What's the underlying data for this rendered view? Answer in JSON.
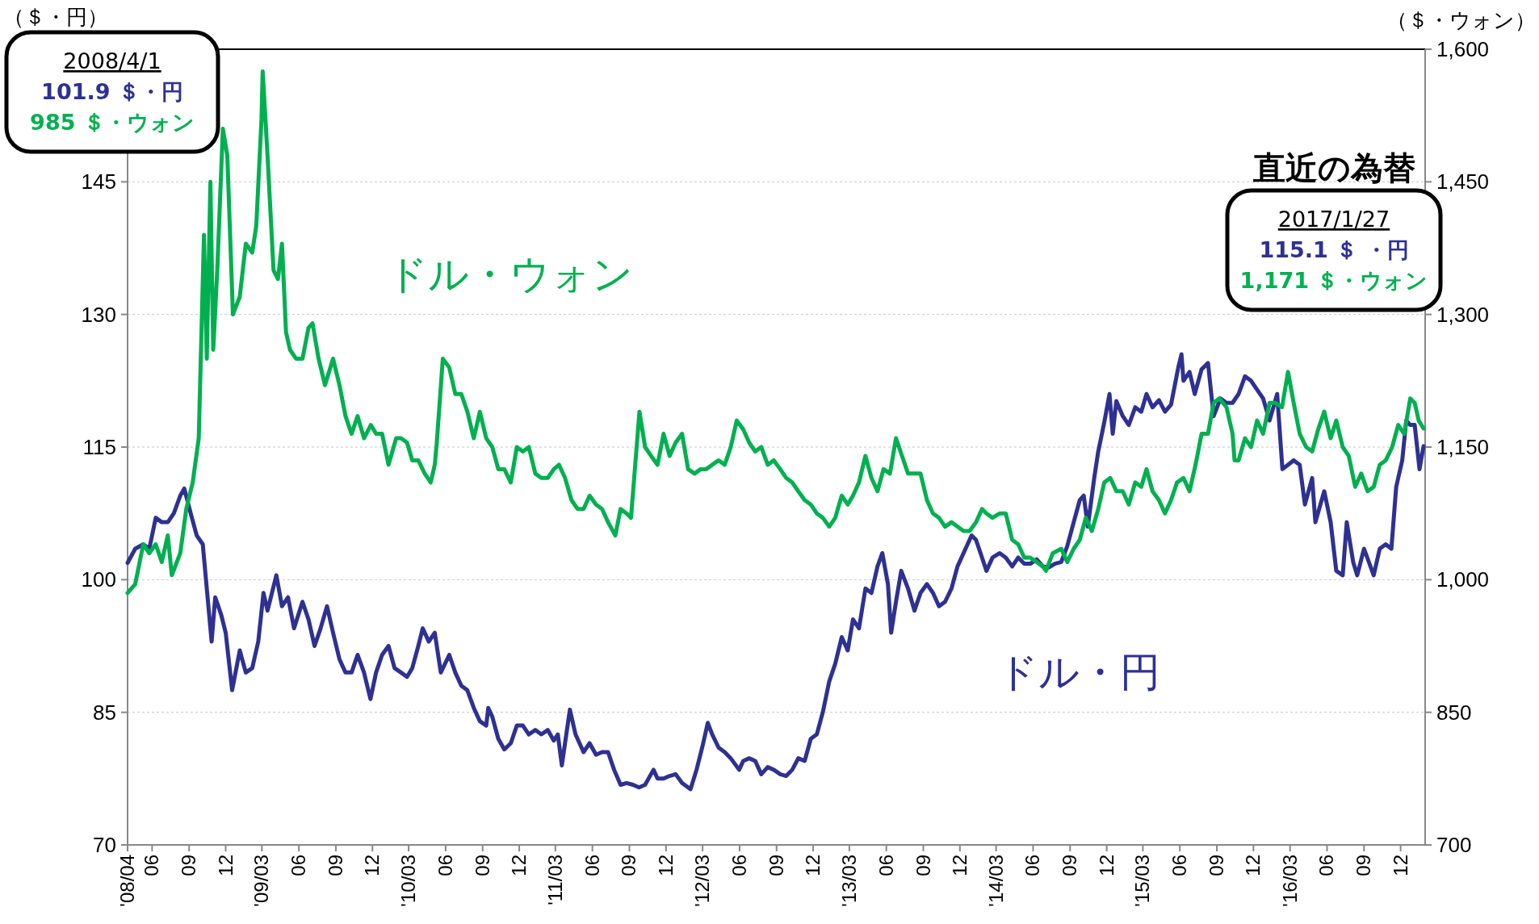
{
  "chart_data": {
    "type": "line",
    "ylabel": "（＄・円）",
    "y2label": "（＄・ウォン）",
    "xlim": [
      "2008-04-01",
      "2017-01-31"
    ],
    "xticks": [
      {
        "value": "2008-04-01",
        "label": "'08/04"
      },
      {
        "value": "2008-06-01",
        "label": "06"
      },
      {
        "value": "2008-09-01",
        "label": "09"
      },
      {
        "value": "2008-12-01",
        "label": "12"
      },
      {
        "value": "2009-03-01",
        "label": "'09/03"
      },
      {
        "value": "2009-06-01",
        "label": "06"
      },
      {
        "value": "2009-09-01",
        "label": "09"
      },
      {
        "value": "2009-12-01",
        "label": "12"
      },
      {
        "value": "2010-03-01",
        "label": "'10/03"
      },
      {
        "value": "2010-06-01",
        "label": "06"
      },
      {
        "value": "2010-09-01",
        "label": "09"
      },
      {
        "value": "2010-12-01",
        "label": "12"
      },
      {
        "value": "2011-03-01",
        "label": "'11/03"
      },
      {
        "value": "2011-06-01",
        "label": "06"
      },
      {
        "value": "2011-09-01",
        "label": "09"
      },
      {
        "value": "2011-12-01",
        "label": "12"
      },
      {
        "value": "2012-03-01",
        "label": "'12/03"
      },
      {
        "value": "2012-06-01",
        "label": "06"
      },
      {
        "value": "2012-09-01",
        "label": "09"
      },
      {
        "value": "2012-12-01",
        "label": "12"
      },
      {
        "value": "2013-03-01",
        "label": "'13/03"
      },
      {
        "value": "2013-06-01",
        "label": "06"
      },
      {
        "value": "2013-09-01",
        "label": "09"
      },
      {
        "value": "2013-12-01",
        "label": "12"
      },
      {
        "value": "2014-03-01",
        "label": "'14/03"
      },
      {
        "value": "2014-06-01",
        "label": "06"
      },
      {
        "value": "2014-09-01",
        "label": "09"
      },
      {
        "value": "2014-12-01",
        "label": "12"
      },
      {
        "value": "2015-03-01",
        "label": "'15/03"
      },
      {
        "value": "2015-06-01",
        "label": "06"
      },
      {
        "value": "2015-09-01",
        "label": "09"
      },
      {
        "value": "2015-12-01",
        "label": "12"
      },
      {
        "value": "2016-03-01",
        "label": "'16/03"
      },
      {
        "value": "2016-06-01",
        "label": "06"
      },
      {
        "value": "2016-09-01",
        "label": "09"
      },
      {
        "value": "2016-12-01",
        "label": "12"
      }
    ],
    "ylim": [
      70,
      160
    ],
    "yticks": [
      70,
      85,
      100,
      115,
      130,
      145
    ],
    "y2lim": [
      700,
      1600
    ],
    "y2ticks": [
      {
        "value": 700,
        "label": "700"
      },
      {
        "value": 850,
        "label": "850"
      },
      {
        "value": 1000,
        "label": "1,000"
      },
      {
        "value": 1150,
        "label": "1,150"
      },
      {
        "value": 1300,
        "label": "1,300"
      },
      {
        "value": 1450,
        "label": "1,450"
      },
      {
        "value": 1600,
        "label": "1,600"
      }
    ],
    "grid": "y",
    "annotations": [
      "直近の為替",
      "2008/4/1",
      "101.9 ＄・円",
      "985 ＄・ウォン",
      "2017/1/27",
      "115.1 ＄ ・円",
      "1,171 ＄・ウォン"
    ],
    "series": [
      {
        "name": "ドル・円",
        "color": "#2e3192",
        "x": [
          "2008-04-01",
          "2008-04-20",
          "2008-05-10",
          "2008-05-25",
          "2008-06-10",
          "2008-06-25",
          "2008-07-10",
          "2008-07-25",
          "2008-08-10",
          "2008-08-20",
          "2008-09-05",
          "2008-09-20",
          "2008-10-05",
          "2008-10-15",
          "2008-10-27",
          "2008-11-05",
          "2008-11-20",
          "2008-12-01",
          "2008-12-17",
          "2009-01-05",
          "2009-01-20",
          "2009-02-05",
          "2009-02-20",
          "2009-03-05",
          "2009-03-15",
          "2009-04-06",
          "2009-04-20",
          "2009-05-05",
          "2009-05-20",
          "2009-06-10",
          "2009-06-25",
          "2009-07-10",
          "2009-07-25",
          "2009-08-10",
          "2009-08-25",
          "2009-09-10",
          "2009-09-25",
          "2009-10-10",
          "2009-10-25",
          "2009-11-10",
          "2009-11-26",
          "2009-12-10",
          "2009-12-25",
          "2010-01-10",
          "2010-01-25",
          "2010-02-10",
          "2010-02-25",
          "2010-03-10",
          "2010-03-25",
          "2010-04-05",
          "2010-04-20",
          "2010-05-05",
          "2010-05-20",
          "2010-06-10",
          "2010-06-25",
          "2010-07-10",
          "2010-07-25",
          "2010-08-10",
          "2010-08-25",
          "2010-09-10",
          "2010-09-15",
          "2010-09-25",
          "2010-10-10",
          "2010-10-25",
          "2010-11-10",
          "2010-11-25",
          "2010-12-10",
          "2010-12-25",
          "2011-01-10",
          "2011-01-25",
          "2011-02-10",
          "2011-02-25",
          "2011-03-07",
          "2011-03-17",
          "2011-04-06",
          "2011-04-20",
          "2011-05-10",
          "2011-05-25",
          "2011-06-10",
          "2011-06-25",
          "2011-07-10",
          "2011-07-25",
          "2011-08-10",
          "2011-08-25",
          "2011-09-10",
          "2011-09-25",
          "2011-10-10",
          "2011-10-31",
          "2011-11-10",
          "2011-11-25",
          "2011-12-10",
          "2011-12-25",
          "2012-01-10",
          "2012-01-31",
          "2012-02-15",
          "2012-02-29",
          "2012-03-14",
          "2012-03-25",
          "2012-04-10",
          "2012-04-25",
          "2012-05-10",
          "2012-05-31",
          "2012-06-10",
          "2012-06-25",
          "2012-07-10",
          "2012-07-25",
          "2012-08-10",
          "2012-08-25",
          "2012-09-10",
          "2012-09-25",
          "2012-10-10",
          "2012-10-25",
          "2012-11-10",
          "2012-11-25",
          "2012-12-10",
          "2012-12-25",
          "2013-01-10",
          "2013-01-25",
          "2013-02-10",
          "2013-02-25",
          "2013-03-10",
          "2013-03-25",
          "2013-04-10",
          "2013-04-25",
          "2013-05-10",
          "2013-05-22",
          "2013-06-05",
          "2013-06-13",
          "2013-06-25",
          "2013-07-08",
          "2013-07-25",
          "2013-08-10",
          "2013-08-25",
          "2013-09-10",
          "2013-09-25",
          "2013-10-10",
          "2013-10-25",
          "2013-11-10",
          "2013-11-25",
          "2013-12-10",
          "2013-12-30",
          "2014-01-10",
          "2014-01-25",
          "2014-02-05",
          "2014-02-20",
          "2014-03-10",
          "2014-03-25",
          "2014-04-10",
          "2014-04-25",
          "2014-05-10",
          "2014-05-25",
          "2014-06-10",
          "2014-06-25",
          "2014-07-10",
          "2014-07-25",
          "2014-08-10",
          "2014-08-25",
          "2014-09-10",
          "2014-09-25",
          "2014-10-05",
          "2014-10-15",
          "2014-10-31",
          "2014-11-10",
          "2014-11-25",
          "2014-12-08",
          "2014-12-16",
          "2014-12-25",
          "2015-01-10",
          "2015-01-25",
          "2015-02-10",
          "2015-02-25",
          "2015-03-10",
          "2015-03-25",
          "2015-04-10",
          "2015-04-25",
          "2015-05-10",
          "2015-05-28",
          "2015-06-05",
          "2015-06-10",
          "2015-06-25",
          "2015-07-08",
          "2015-07-25",
          "2015-08-10",
          "2015-08-24",
          "2015-09-10",
          "2015-09-25",
          "2015-10-10",
          "2015-10-25",
          "2015-11-10",
          "2015-11-25",
          "2015-12-10",
          "2015-12-25",
          "2016-01-10",
          "2016-01-29",
          "2016-02-11",
          "2016-02-25",
          "2016-03-10",
          "2016-03-25",
          "2016-04-07",
          "2016-04-25",
          "2016-05-03",
          "2016-05-25",
          "2016-06-10",
          "2016-06-24",
          "2016-07-10",
          "2016-07-20",
          "2016-08-05",
          "2016-08-15",
          "2016-09-01",
          "2016-09-25",
          "2016-10-10",
          "2016-10-25",
          "2016-11-08",
          "2016-11-20",
          "2016-12-05",
          "2016-12-15",
          "2016-12-25",
          "2017-01-05",
          "2017-01-17",
          "2017-01-27"
        ],
        "values": [
          101.9,
          103.5,
          104,
          103.5,
          107,
          106.5,
          106.5,
          107.5,
          109.5,
          110.3,
          107.5,
          105,
          104,
          99,
          93,
          98,
          96,
          94,
          87.5,
          92,
          89.5,
          90,
          93,
          98.5,
          96.5,
          100.5,
          97,
          98,
          94.5,
          97.5,
          95.5,
          92.5,
          94.5,
          97,
          94,
          91,
          89.5,
          89.5,
          91.5,
          89.5,
          86.5,
          89.5,
          91.5,
          92.5,
          90,
          89.5,
          89,
          90,
          92.5,
          94.5,
          93,
          94,
          89.5,
          91.5,
          89.5,
          88,
          87.5,
          85.5,
          84,
          83.5,
          85.5,
          84.5,
          82,
          80.8,
          81.5,
          83.5,
          83.5,
          82.5,
          83,
          82.5,
          83,
          81.8,
          82.5,
          79,
          85.3,
          82.5,
          80.5,
          81.5,
          80.2,
          80.5,
          80.5,
          78.5,
          76.8,
          77,
          76.8,
          76.5,
          76.8,
          78.5,
          77.5,
          77.5,
          77.8,
          78,
          77,
          76.3,
          78.5,
          81,
          83.8,
          82.5,
          81,
          80.5,
          79.8,
          78.5,
          79.5,
          79.8,
          79.5,
          78,
          78.8,
          78.5,
          78,
          77.8,
          78.5,
          79.8,
          79.5,
          82,
          82.5,
          85,
          88.5,
          90.5,
          93.5,
          92,
          95.5,
          94.5,
          99,
          98.5,
          101.5,
          103,
          99.5,
          94,
          97.5,
          101,
          99,
          96.5,
          98.5,
          99.5,
          98.5,
          97,
          97.5,
          99,
          101.5,
          103,
          105,
          104.5,
          102.5,
          101,
          102.5,
          103,
          102.5,
          101.5,
          102.5,
          101.8,
          101.8,
          102.3,
          101.5,
          101.4,
          101.8,
          102,
          103.8,
          106.5,
          109,
          109.5,
          106,
          111.5,
          114.5,
          117.8,
          121,
          116.5,
          120.2,
          118.5,
          117.5,
          119.5,
          119,
          121,
          119.5,
          120.3,
          119,
          119.8,
          124,
          125.5,
          122.5,
          123.5,
          121,
          123.8,
          124.5,
          118.5,
          120.5,
          120,
          120,
          121,
          123,
          122.5,
          121.5,
          120.5,
          118,
          121,
          112.5,
          113,
          113.5,
          113,
          108.5,
          111.5,
          106.5,
          110,
          106.5,
          101,
          100.5,
          106.5,
          102,
          100.5,
          103.5,
          100.5,
          103.5,
          104,
          103.5,
          110.5,
          113.5,
          118,
          117.5,
          117.5,
          112.5,
          115.1
        ]
      },
      {
        "name": "ドル・ウォン",
        "color": "#00b050",
        "axis": "y2",
        "x": [
          "2008-04-01",
          "2008-04-20",
          "2008-05-10",
          "2008-05-25",
          "2008-06-10",
          "2008-06-25",
          "2008-07-10",
          "2008-07-20",
          "2008-08-10",
          "2008-08-25",
          "2008-09-10",
          "2008-09-25",
          "2008-10-08",
          "2008-10-15",
          "2008-10-24",
          "2008-10-31",
          "2008-11-10",
          "2008-11-24",
          "2008-12-05",
          "2008-12-19",
          "2009-01-05",
          "2009-01-20",
          "2009-02-05",
          "2009-02-15",
          "2009-02-28",
          "2009-03-03",
          "2009-03-15",
          "2009-03-30",
          "2009-04-10",
          "2009-04-20",
          "2009-04-30",
          "2009-05-10",
          "2009-05-25",
          "2009-06-10",
          "2009-06-25",
          "2009-07-05",
          "2009-07-20",
          "2009-08-05",
          "2009-08-25",
          "2009-09-10",
          "2009-09-25",
          "2009-10-10",
          "2009-10-25",
          "2009-11-10",
          "2009-11-27",
          "2009-12-10",
          "2009-12-25",
          "2010-01-10",
          "2010-01-29",
          "2010-02-10",
          "2010-02-25",
          "2010-03-10",
          "2010-03-25",
          "2010-04-10",
          "2010-04-25",
          "2010-05-05",
          "2010-05-10",
          "2010-05-25",
          "2010-06-10",
          "2010-06-25",
          "2010-07-10",
          "2010-07-25",
          "2010-08-10",
          "2010-08-25",
          "2010-09-10",
          "2010-09-25",
          "2010-10-10",
          "2010-10-25",
          "2010-11-10",
          "2010-11-25",
          "2010-12-10",
          "2010-12-25",
          "2011-01-10",
          "2011-01-25",
          "2011-02-10",
          "2011-02-25",
          "2011-03-10",
          "2011-03-25",
          "2011-04-10",
          "2011-04-25",
          "2011-05-10",
          "2011-05-25",
          "2011-06-10",
          "2011-06-25",
          "2011-07-10",
          "2011-07-28",
          "2011-08-10",
          "2011-08-25",
          "2011-09-05",
          "2011-09-26",
          "2011-10-10",
          "2011-10-25",
          "2011-11-10",
          "2011-11-25",
          "2011-12-10",
          "2011-12-25",
          "2012-01-10",
          "2012-01-25",
          "2012-02-10",
          "2012-02-25",
          "2012-03-10",
          "2012-03-25",
          "2012-04-10",
          "2012-04-25",
          "2012-05-10",
          "2012-05-25",
          "2012-06-10",
          "2012-06-25",
          "2012-07-10",
          "2012-07-25",
          "2012-08-10",
          "2012-08-25",
          "2012-09-10",
          "2012-09-25",
          "2012-10-10",
          "2012-10-25",
          "2012-11-10",
          "2012-11-25",
          "2012-12-10",
          "2012-12-25",
          "2013-01-10",
          "2013-01-25",
          "2013-02-10",
          "2013-02-25",
          "2013-03-10",
          "2013-03-25",
          "2013-04-10",
          "2013-04-25",
          "2013-05-10",
          "2013-05-25",
          "2013-06-10",
          "2013-06-25",
          "2013-07-10",
          "2013-07-25",
          "2013-08-10",
          "2013-08-25",
          "2013-09-10",
          "2013-09-25",
          "2013-10-10",
          "2013-10-25",
          "2013-11-10",
          "2013-11-25",
          "2013-12-10",
          "2013-12-25",
          "2014-01-10",
          "2014-01-25",
          "2014-02-05",
          "2014-02-20",
          "2014-03-10",
          "2014-03-25",
          "2014-04-10",
          "2014-04-25",
          "2014-05-10",
          "2014-05-25",
          "2014-06-10",
          "2014-06-25",
          "2014-07-03",
          "2014-07-20",
          "2014-08-10",
          "2014-08-25",
          "2014-09-10",
          "2014-09-25",
          "2014-10-10",
          "2014-10-25",
          "2014-11-10",
          "2014-11-25",
          "2014-12-10",
          "2014-12-25",
          "2015-01-10",
          "2015-01-25",
          "2015-02-10",
          "2015-02-25",
          "2015-03-10",
          "2015-03-25",
          "2015-04-10",
          "2015-04-25",
          "2015-05-10",
          "2015-05-25",
          "2015-06-10",
          "2015-06-25",
          "2015-07-10",
          "2015-07-25",
          "2015-08-10",
          "2015-08-24",
          "2015-09-07",
          "2015-09-25",
          "2015-10-10",
          "2015-10-15",
          "2015-10-25",
          "2015-11-10",
          "2015-11-25",
          "2015-12-10",
          "2015-12-25",
          "2016-01-10",
          "2016-01-25",
          "2016-02-10",
          "2016-02-25",
          "2016-03-10",
          "2016-03-25",
          "2016-04-10",
          "2016-04-25",
          "2016-05-10",
          "2016-05-25",
          "2016-06-10",
          "2016-06-24",
          "2016-07-10",
          "2016-07-25",
          "2016-08-10",
          "2016-08-25",
          "2016-09-10",
          "2016-09-25",
          "2016-10-10",
          "2016-10-25",
          "2016-11-10",
          "2016-11-25",
          "2016-12-10",
          "2016-12-25",
          "2017-01-05",
          "2017-01-15",
          "2017-01-27"
        ],
        "values": [
          985,
          995,
          1040,
          1030,
          1040,
          1020,
          1050,
          1005,
          1030,
          1080,
          1110,
          1160,
          1390,
          1250,
          1450,
          1260,
          1350,
          1510,
          1480,
          1300,
          1320,
          1380,
          1370,
          1400,
          1520,
          1575,
          1480,
          1350,
          1340,
          1380,
          1280,
          1260,
          1250,
          1250,
          1285,
          1290,
          1250,
          1220,
          1250,
          1220,
          1185,
          1165,
          1185,
          1160,
          1175,
          1165,
          1165,
          1130,
          1160,
          1160,
          1155,
          1135,
          1135,
          1120,
          1110,
          1130,
          1155,
          1250,
          1240,
          1210,
          1210,
          1190,
          1160,
          1190,
          1160,
          1150,
          1125,
          1125,
          1110,
          1150,
          1145,
          1150,
          1120,
          1115,
          1115,
          1125,
          1130,
          1115,
          1090,
          1080,
          1080,
          1095,
          1085,
          1080,
          1065,
          1050,
          1080,
          1075,
          1070,
          1190,
          1150,
          1140,
          1130,
          1165,
          1140,
          1155,
          1165,
          1125,
          1120,
          1125,
          1125,
          1130,
          1135,
          1130,
          1150,
          1180,
          1170,
          1155,
          1145,
          1150,
          1130,
          1135,
          1125,
          1115,
          1110,
          1100,
          1090,
          1085,
          1075,
          1070,
          1060,
          1070,
          1095,
          1085,
          1095,
          1110,
          1140,
          1115,
          1100,
          1125,
          1120,
          1160,
          1140,
          1120,
          1120,
          1120,
          1090,
          1075,
          1070,
          1060,
          1065,
          1060,
          1055,
          1055,
          1065,
          1080,
          1075,
          1070,
          1075,
          1075,
          1045,
          1040,
          1025,
          1025,
          1020,
          1015,
          1010,
          1030,
          1035,
          1020,
          1035,
          1045,
          1070,
          1055,
          1080,
          1110,
          1115,
          1100,
          1100,
          1085,
          1110,
          1105,
          1125,
          1100,
          1090,
          1075,
          1090,
          1110,
          1115,
          1100,
          1130,
          1165,
          1165,
          1200,
          1205,
          1195,
          1165,
          1135,
          1135,
          1160,
          1150,
          1180,
          1165,
          1200,
          1200,
          1195,
          1235,
          1200,
          1165,
          1150,
          1145,
          1170,
          1190,
          1160,
          1180,
          1150,
          1140,
          1105,
          1120,
          1100,
          1105,
          1130,
          1135,
          1150,
          1175,
          1165,
          1205,
          1200,
          1180,
          1171
        ]
      }
    ]
  }
}
